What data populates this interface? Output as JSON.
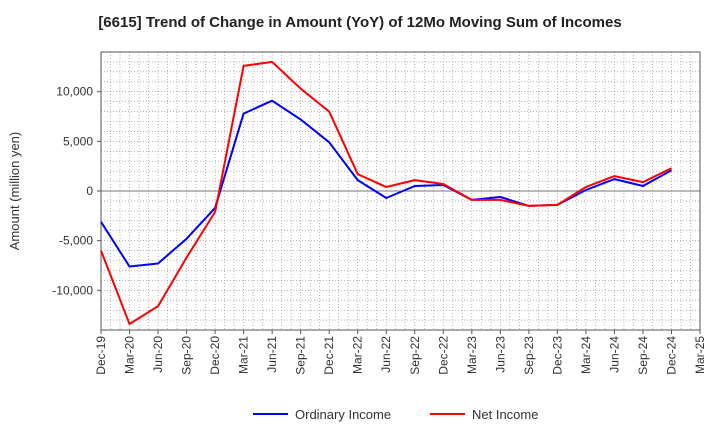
{
  "chart_data": {
    "type": "line",
    "title": "[6615]  Trend of Change in Amount (YoY) of 12Mo Moving Sum of Incomes",
    "xlabel": "",
    "ylabel": "Amount (million yen)",
    "ylim": [
      -14000,
      14000
    ],
    "y_ticks": [
      -10000,
      -5000,
      0,
      5000,
      10000
    ],
    "y_tick_labels": [
      "-10,000",
      "-5,000",
      "0",
      "5,000",
      "10,000"
    ],
    "categories": [
      "Dec-19",
      "Mar-20",
      "Jun-20",
      "Sep-20",
      "Dec-20",
      "Mar-21",
      "Jun-21",
      "Sep-21",
      "Dec-21",
      "Mar-22",
      "Jun-22",
      "Sep-22",
      "Dec-22",
      "Mar-23",
      "Jun-23",
      "Sep-23",
      "Dec-23",
      "Mar-24",
      "Jun-24",
      "Sep-24",
      "Dec-24",
      "Mar-25"
    ],
    "grid": true,
    "legend_position": "bottom",
    "series": [
      {
        "name": "Ordinary Income",
        "color": "#0000ff",
        "values": [
          -3100,
          -7600,
          -7300,
          -4800,
          -1700,
          7800,
          9100,
          7200,
          4900,
          1100,
          -700,
          500,
          600,
          -900,
          -600,
          -1500,
          -1400,
          100,
          1200,
          500,
          2100,
          null
        ]
      },
      {
        "name": "Net Income",
        "color": "#ff0000",
        "values": [
          -6000,
          -13400,
          -11600,
          -6700,
          -2100,
          12600,
          13000,
          10300,
          8000,
          1700,
          400,
          1100,
          700,
          -900,
          -900,
          -1500,
          -1400,
          400,
          1500,
          900,
          2300,
          null
        ]
      }
    ]
  }
}
